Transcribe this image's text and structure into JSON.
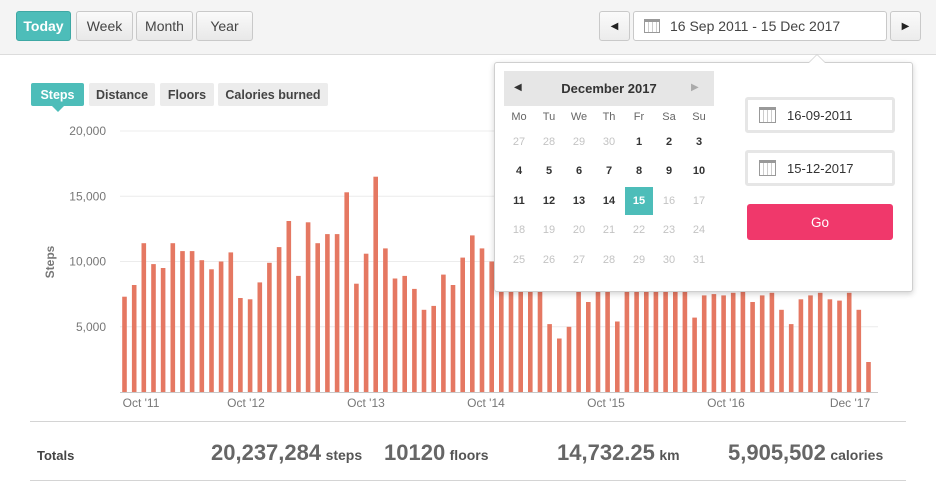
{
  "ranges": {
    "today": "Today",
    "week": "Week",
    "month": "Month",
    "year": "Year"
  },
  "date_range": {
    "label": "16 Sep 2011 - 15 Dec 2017",
    "prev_arrow": "◀",
    "next_arrow": "▶"
  },
  "metric_tabs": [
    "Steps",
    "Distance",
    "Floors",
    "Calories burned"
  ],
  "colors": {
    "accent": "#4dbdb9",
    "bar": "#e57862",
    "go": "#f0386b"
  },
  "chart_data": {
    "type": "bar",
    "ylabel": "Steps",
    "ylim": [
      0,
      20000
    ],
    "y_ticks": [
      "20,000",
      "15,000",
      "10,000",
      "5,000"
    ],
    "x_ticks": [
      "Oct '11",
      "Oct '12",
      "Oct '13",
      "Oct '14",
      "Oct '15",
      "Oct '16",
      "Dec '17"
    ],
    "grid": true,
    "values": [
      7300,
      8200,
      11400,
      9800,
      9500,
      11400,
      10800,
      10800,
      10100,
      9400,
      10000,
      10700,
      7200,
      7100,
      8400,
      9900,
      11100,
      13100,
      8900,
      13000,
      11400,
      12100,
      12100,
      15300,
      8300,
      10600,
      16500,
      11000,
      8700,
      8900,
      7900,
      6300,
      6600,
      9000,
      8200,
      10300,
      12000,
      11000,
      10000,
      11000,
      9000,
      9500,
      9000,
      8300,
      5200,
      4100,
      5000,
      8000,
      6900,
      7700,
      7800,
      5400,
      8800,
      8200,
      8400,
      7800,
      8500,
      7700,
      8400,
      5700,
      7400,
      7500,
      7400,
      7600,
      7800,
      6900,
      7400,
      7600,
      6300,
      5200,
      7100,
      7400,
      7600,
      7100,
      7000,
      7600,
      6300,
      2300
    ]
  },
  "totals": {
    "label": "Totals",
    "steps_value": "20,237,284",
    "steps_unit": "steps",
    "floors_value": "10120",
    "floors_unit": "floors",
    "km_value": "14,732.25",
    "km_unit": "km",
    "calories_value": "5,905,502",
    "calories_unit": "calories"
  },
  "calendar": {
    "title": "December 2017",
    "prev_arrow": "◀",
    "next_arrow": "▶",
    "weekdays": [
      "Mo",
      "Tu",
      "We",
      "Th",
      "Fr",
      "Sa",
      "Su"
    ],
    "rows": [
      [
        "27",
        "28",
        "29",
        "30",
        "1",
        "2",
        "3"
      ],
      [
        "4",
        "5",
        "6",
        "7",
        "8",
        "9",
        "10"
      ],
      [
        "11",
        "12",
        "13",
        "14",
        "15",
        "16",
        "17"
      ],
      [
        "18",
        "19",
        "20",
        "21",
        "22",
        "23",
        "24"
      ],
      [
        "25",
        "26",
        "27",
        "28",
        "29",
        "30",
        "31"
      ]
    ],
    "selected": "15",
    "start_date": "16-09-2011",
    "end_date": "15-12-2017",
    "go_label": "Go"
  }
}
